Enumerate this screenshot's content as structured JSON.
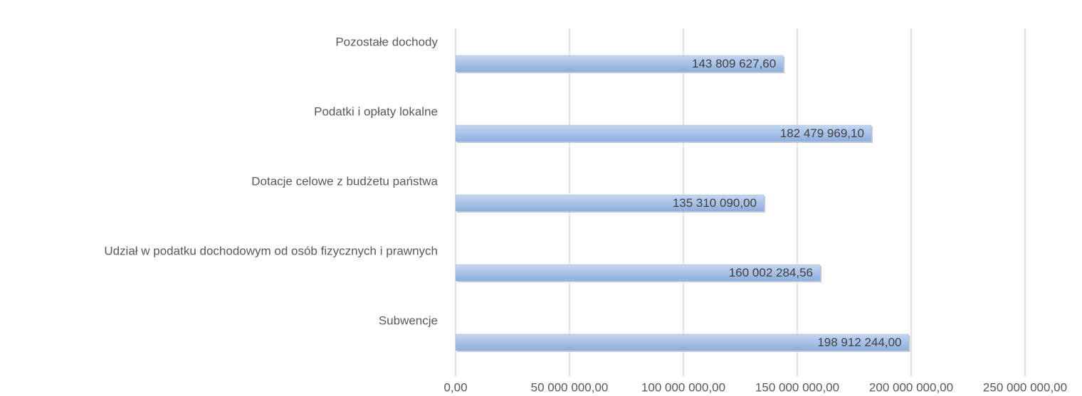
{
  "chart_data": {
    "type": "barh",
    "categories": [
      "Pozostałe dochody",
      "Podatki i opłaty lokalne",
      "Dotacje celowe z budżetu państwa",
      "Udział w podatku dochodowym od osób fizycznych i prawnych",
      "Subwencje"
    ],
    "values": [
      143809627.6,
      182479969.1,
      135310090.0,
      160002284.56,
      198912244.0
    ],
    "value_labels": [
      "143 809 627,60",
      "182 479 969,10",
      "135 310 090,00",
      "160 002 284,56",
      "198 912 244,00"
    ],
    "color": "#9fbbe4",
    "xlim": [
      0,
      250000000
    ],
    "xticks": [
      {
        "value": 0,
        "label": "0,00"
      },
      {
        "value": 50000000,
        "label": "50 000 000,00"
      },
      {
        "value": 100000000,
        "label": "100 000 000,00"
      },
      {
        "value": 150000000,
        "label": "150 000 000,00"
      },
      {
        "value": 200000000,
        "label": "200 000 000,00"
      },
      {
        "value": 250000000,
        "label": "250 000 000,00"
      }
    ],
    "grid": true
  }
}
